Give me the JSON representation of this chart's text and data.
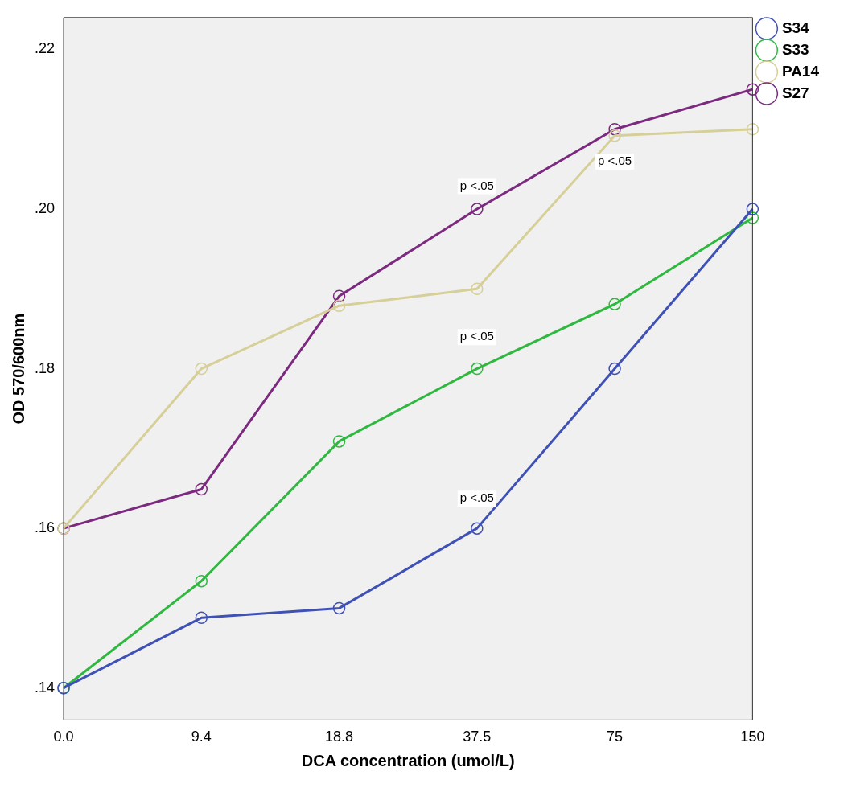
{
  "chart_data": {
    "type": "line",
    "xlabel": "DCA concentration (umol/L)",
    "ylabel": "OD 570/600nm",
    "categories": [
      "0.0",
      "9.4",
      "18.8",
      "37.5",
      "75",
      "150"
    ],
    "series": [
      {
        "name": "S34",
        "color": "#3f51b5",
        "values": [
          0.14,
          0.1488,
          0.15,
          0.16,
          0.18,
          0.2
        ]
      },
      {
        "name": "S33",
        "color": "#2fb83f",
        "values": [
          0.14,
          0.1534,
          0.1709,
          0.18,
          0.1881,
          0.1989
        ]
      },
      {
        "name": "PA14",
        "color": "#d6cf98",
        "values": [
          0.16,
          0.18,
          0.1879,
          0.19,
          0.2092,
          0.21
        ]
      },
      {
        "name": "S27",
        "color": "#7b2a7f",
        "values": [
          0.16,
          0.1649,
          0.1891,
          0.2,
          0.21,
          0.215
        ]
      }
    ],
    "ylim": [
      0.136,
      0.224
    ],
    "yticks": [
      {
        "value": 0.14,
        "label": ".14"
      },
      {
        "value": 0.16,
        "label": ".16"
      },
      {
        "value": 0.18,
        "label": ".18"
      },
      {
        "value": 0.2,
        "label": ".20"
      },
      {
        "value": 0.22,
        "label": ".22"
      }
    ],
    "annotations": [
      "p <.05",
      "p <.05",
      "p <.05",
      "p <.05"
    ],
    "marker": "circle",
    "line_style": "solid",
    "grid": false,
    "legend": "top right"
  }
}
